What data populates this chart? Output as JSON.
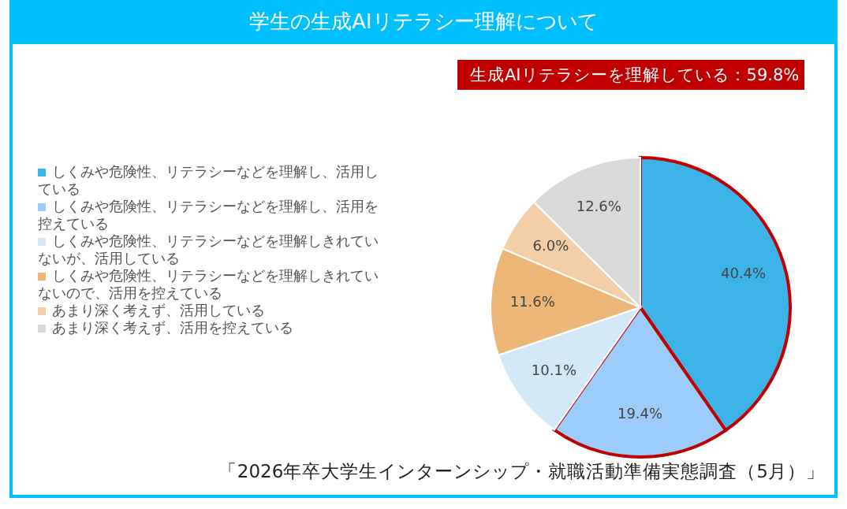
{
  "chart_data": {
    "type": "pie",
    "title": "学生の生成AIリテラシー理解について",
    "categories": [
      "しくみや危険性、リテラシーなどを理解し、活用している",
      "しくみや危険性、リテラシーなどを理解し、活用を控えている",
      "しくみや危険性、リテラシーなどを理解しきれていないが、活用している",
      "しくみや危険性、リテラシーなどを理解しきれていないので、活用を控えている",
      "あまり深く考えず、活用している",
      "あまり深く考えず、活用を控えている"
    ],
    "values": [
      40.4,
      19.4,
      10.1,
      11.6,
      6.0,
      12.6
    ],
    "colors": [
      "#3db4e8",
      "#9ccdfa",
      "#d3e9f8",
      "#edb877",
      "#f4cfa5",
      "#d9d9d9"
    ],
    "value_labels": [
      "40.4%",
      "19.4%",
      "10.1%",
      "11.6%",
      "6.0%",
      "12.6%"
    ],
    "legend": "left",
    "annotations": [
      "生成AIリテラシーを理解している：59.8%",
      "「2026年卒大学生インターンシップ・就職活動準備実態調査（5月）」"
    ]
  }
}
